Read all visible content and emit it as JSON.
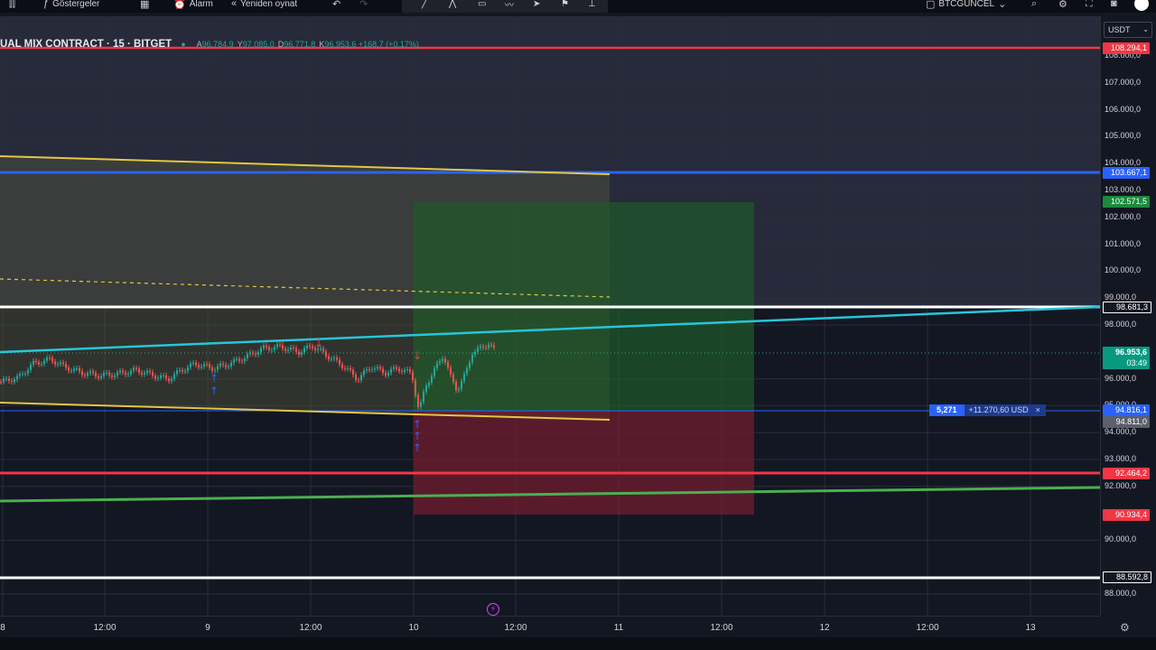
{
  "toolbar": {
    "indicators_label": "Göstergeler",
    "alarm_label": "Alarm",
    "replay_label": "Yeniden oynat",
    "layout_name": "BTCGUNCEL"
  },
  "legend": {
    "symbol": "UAL MIX CONTRACT · 15 · BITGET",
    "o_key": "A",
    "o_val": "96.784,9",
    "h_key": "Y",
    "h_val": "97.085,0",
    "l_key": "D",
    "l_val": "96.771,8",
    "c_key": "K",
    "c_val": "96.953,6 +168,7 (+0,17%)"
  },
  "price_axis": {
    "unit": "USDT",
    "ticks": [
      "108.000,0",
      "107.000,0",
      "106.000,0",
      "105.000,0",
      "104.000,0",
      "103.000,0",
      "102.000,0",
      "101.000,0",
      "100.000,0",
      "99.000,0",
      "98.000,0",
      "96.000,0",
      "95.000,0",
      "94.000,0",
      "93.000,0",
      "92.000,0",
      "90.000,0",
      "88.000,0"
    ],
    "chips": {
      "l108294": "108.294,1",
      "l103667": "103.667,1",
      "l102571": "102.571,5",
      "l98681": "98.681,3",
      "last_price": "96.953,6",
      "countdown": "03:49",
      "l94816": "94.816,1",
      "l94811": "94.811,0",
      "l92464": "92.464,2",
      "l90934": "90.934,4",
      "l88592": "88.592,8"
    }
  },
  "time_axis": {
    "ticks": [
      "8",
      "12:00",
      "9",
      "12:00",
      "10",
      "12:00",
      "11",
      "12:00",
      "12",
      "12:00",
      "13"
    ]
  },
  "position": {
    "qty": "5,271",
    "pnl": "+11.270,60 USD",
    "close": "×"
  },
  "colors": {
    "background": "#131722",
    "red_line": "#f23645",
    "blue_line": "#2962ff",
    "green_chip": "#089981",
    "yellow_channel": "#e2c744",
    "teal_trend": "#26c6da",
    "green_trend": "#4caf50",
    "white_line": "#ffffff"
  },
  "chart_data": {
    "type": "candlestick",
    "symbol": "BITGET 15",
    "horizontal_levels": [
      108294.1,
      103667.1,
      98681.3,
      94816.1,
      92464.2,
      88592.8
    ],
    "last_price": 96953.6,
    "ylim": [
      87500,
      109200
    ]
  }
}
